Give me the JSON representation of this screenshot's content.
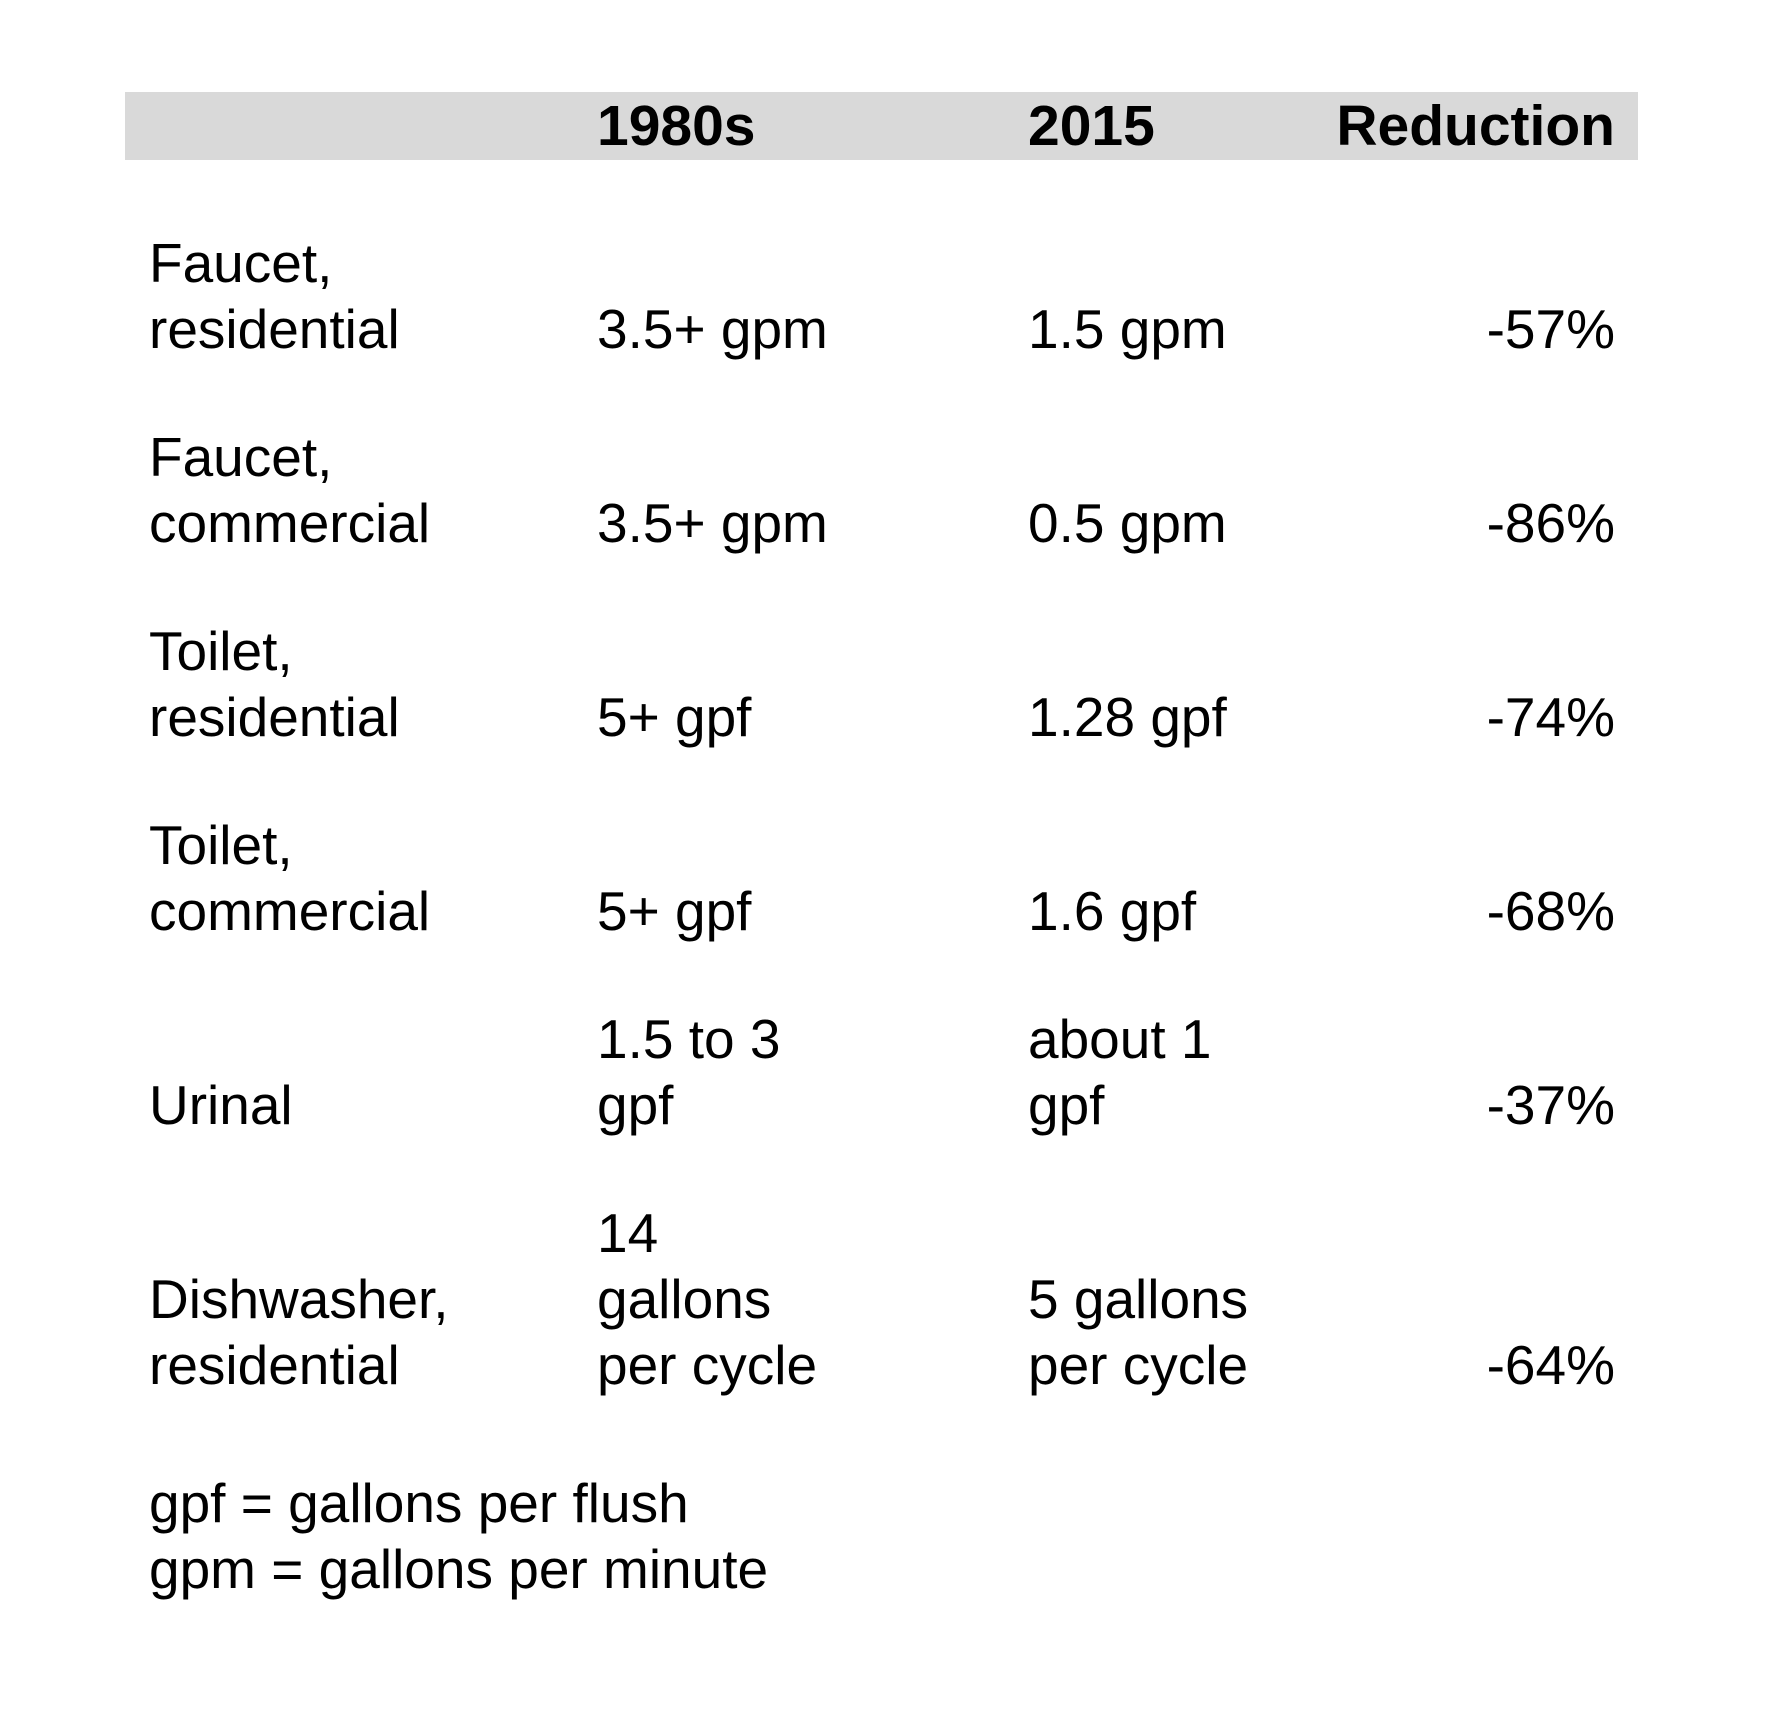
{
  "chart_data": {
    "type": "table",
    "columns": [
      "",
      "1980s",
      "2015",
      "Reduction"
    ],
    "rows": [
      {
        "label": "Faucet,\nresidential",
        "v1980s": "3.5+ gpm",
        "v2015": "1.5 gpm",
        "reduction": "-57%"
      },
      {
        "label": "Faucet,\ncommercial",
        "v1980s": "3.5+ gpm",
        "v2015": "0.5 gpm",
        "reduction": "-86%"
      },
      {
        "label": "Toilet,\nresidential",
        "v1980s": "5+ gpf",
        "v2015": "1.28 gpf",
        "reduction": "-74%"
      },
      {
        "label": "Toilet,\ncommercial",
        "v1980s": "5+ gpf",
        "v2015": "1.6 gpf",
        "reduction": "-68%"
      },
      {
        "label": "Urinal",
        "v1980s": "1.5 to 3\ngpf",
        "v2015": "about 1\ngpf",
        "reduction": "-37%"
      },
      {
        "label": "Dishwasher,\nresidential",
        "v1980s": "14\ngallons\nper cycle",
        "v2015": "5 gallons\nper cycle",
        "reduction": "-64%"
      }
    ],
    "notes": [
      "gpf = gallons per flush",
      "gpm = gallons per minute"
    ],
    "header_color": "#d9d9d9"
  }
}
